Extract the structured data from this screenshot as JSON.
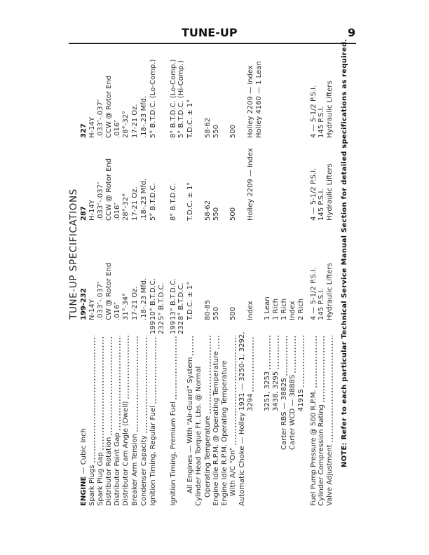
{
  "header": {
    "section": "TUNE-UP",
    "page_number": "9"
  },
  "title": "TUNE-UP SPECIFICATIONS",
  "table": {
    "head": {
      "label_bold": "ENGINE",
      "label_rest": " — Cubic Inch",
      "columns": [
        "199-232",
        "287",
        "327"
      ]
    },
    "rows": [
      {
        "label": "Spark Plugs",
        "suffix": "",
        "values": [
          "N-14Y",
          "H-14Y",
          "H-14Y"
        ]
      },
      {
        "label": "Spark Plug Gap",
        "suffix": "",
        "values": [
          ".033″-.037″",
          ".033″-.037″",
          ".033″-.037″"
        ]
      },
      {
        "label": "Distributor Rotation",
        "suffix": "",
        "values": [
          "CW @ Rotor End",
          "CCW @ Rotor End",
          "CCW @ Rotor End"
        ]
      },
      {
        "label": "Distributor Point Gap",
        "suffix": "",
        "values": [
          ".016″",
          ".016″",
          ".016″"
        ]
      },
      {
        "label": "Distributor Cam Angle (Dwell)",
        "suffix": "",
        "values": [
          "31°-34°",
          "28°-32°",
          "28°-32°"
        ]
      },
      {
        "label": "Breaker Arm Tension",
        "suffix": "",
        "values": [
          "17-21 Oz.",
          "17-21 Oz.",
          "17-21 Oz."
        ]
      },
      {
        "label": "Condenser Capacity",
        "suffix": "",
        "values": [
          ".18-.23 Mfd.",
          ".18-.23 Mfd.",
          ".18-.23 Mfd."
        ]
      },
      {
        "label": "Ignition Timing, Regular Fuel",
        "suffix": "199",
        "values": [
          "10° B.T.D.C.",
          "5° B.T.D.C.",
          "5° B.T.D.C. (Lo-Comp.)"
        ]
      },
      {
        "label": "",
        "suffix": "232",
        "values": [
          "5° B.T.D.C.",
          "",
          ""
        ]
      },
      {
        "label": "Ignition Timing, Premium Fuel",
        "suffix": "199",
        "values": [
          "13° B.T.D.C.",
          "8° B.T.D.C.",
          "8° B.T.D.C. (Lo-Comp.)"
        ]
      },
      {
        "label": "",
        "suffix": "232",
        "values": [
          "8° B.T.D.C.",
          "",
          "5° B.T.D.C. (Hi-Comp.)"
        ]
      },
      {
        "label": "All Engines — With “Air-Guard” System",
        "suffix": "",
        "values": [
          "T.D.C. ± 1°",
          "T.D.C. ± 1°",
          "T.D.C. ± 1°"
        ]
      },
      {
        "label": "Cylinder Head Torque Ft. Lbs. @ Normal",
        "suffix": "",
        "values": [
          "",
          "",
          ""
        ]
      },
      {
        "label": "Operating Temperature",
        "suffix": "",
        "values": [
          "80-85",
          "58-62",
          "58-62"
        ]
      },
      {
        "label": "Engine Idle R.P.M. @ Operating Temperature",
        "suffix": "",
        "values": [
          "550",
          "550",
          "550"
        ]
      },
      {
        "label": "Engine Idle R.P.M. Operating Temperature",
        "suffix": "",
        "values": [
          "",
          "",
          ""
        ]
      },
      {
        "label": "With A/C “On”",
        "suffix": "",
        "values": [
          "500",
          "500",
          "500"
        ]
      },
      {
        "label": "Automatic Choke — Holley 1931 — 3250-1, 3292,",
        "suffix": "",
        "values": [
          "",
          "",
          ""
        ]
      },
      {
        "label": "3294",
        "suffix": "",
        "values": [
          "Index",
          "Holley 2209 — Index",
          "Holley 2209 — Index"
        ]
      },
      {
        "label": "",
        "suffix": "",
        "values": [
          "",
          "",
          "Holley 4160 — 1 Lean"
        ]
      },
      {
        "label": "3251, 3253",
        "suffix": "",
        "values": [
          "1 Lean",
          "",
          ""
        ]
      },
      {
        "label": "3438, 3295",
        "suffix": "",
        "values": [
          "1 Rich",
          "",
          ""
        ]
      },
      {
        "label": "Carter RBS — 3882S",
        "suffix": "",
        "values": [
          "1 Rich",
          "",
          ""
        ]
      },
      {
        "label": "Carter WCD — 3888S",
        "suffix": "",
        "values": [
          "Index",
          "",
          ""
        ]
      },
      {
        "label": "4191S",
        "suffix": "",
        "values": [
          "2 Rich",
          "",
          ""
        ]
      },
      {
        "label": "Fuel Pump Pressure @ 500 R.P.M.",
        "suffix": "",
        "values": [
          "4 — 5-1/2 P.S.I.",
          "4 — 5-1/2 P.S.I.",
          "4 — 5-1/2 P.S.I."
        ]
      },
      {
        "label": "Cylinder Compression Rating",
        "suffix": "",
        "values": [
          "145 P.S.I.",
          "145 P.S.I.",
          "145 P.S.I."
        ]
      },
      {
        "label": "Valve Adjustment",
        "suffix": "",
        "values": [
          "Hydraulic Lifters",
          "Hydraulic Lifters",
          "Hydraulic Lifters"
        ]
      }
    ]
  },
  "note": {
    "prefix": "NOTE:",
    "text": " Refer to each particular Technical Service Manual Section for detailed specifications as required."
  }
}
